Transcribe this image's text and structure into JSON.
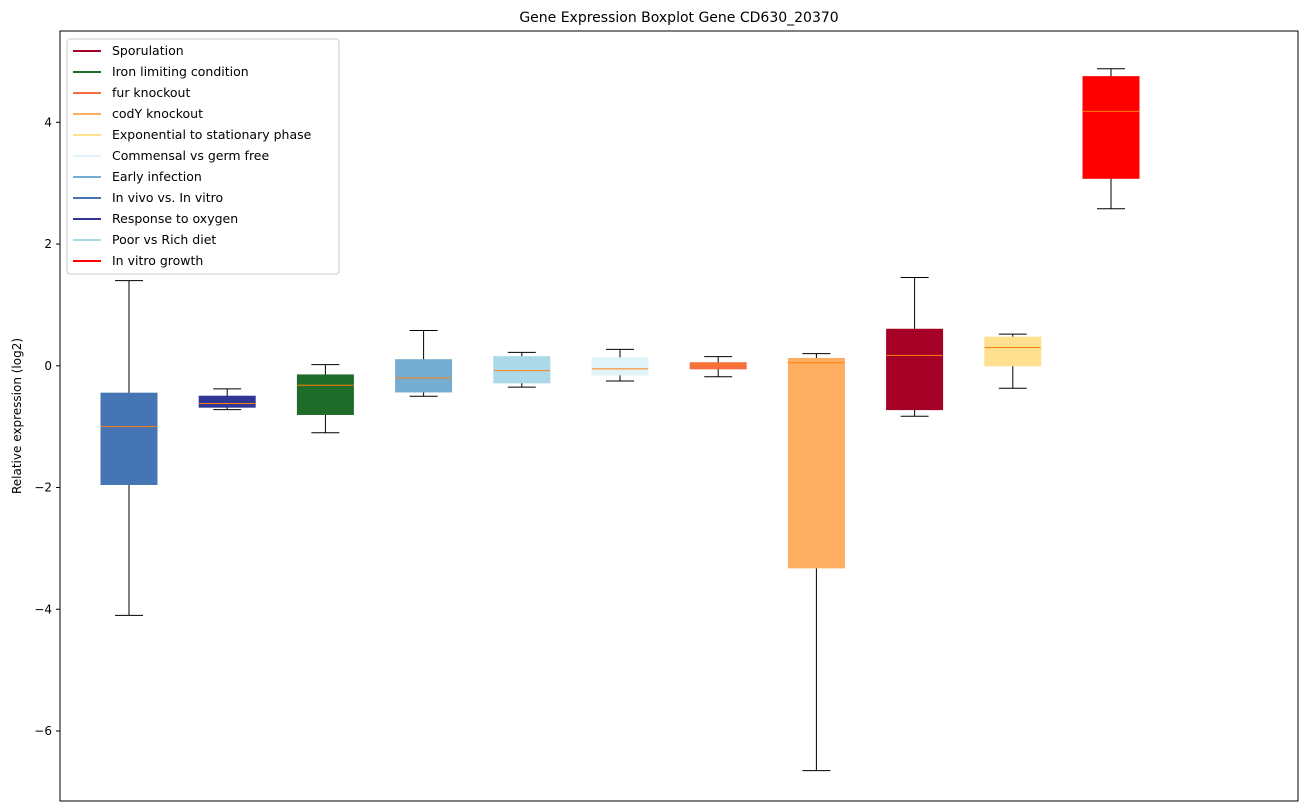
{
  "chart_data": {
    "type": "box",
    "title": "Gene Expression Boxplot Gene CD630_20370",
    "xlabel": "",
    "ylabel": "Relative expression (log2)",
    "ylim": [
      -7.15,
      5.5
    ],
    "yticks": [
      -6,
      -4,
      -2,
      0,
      2,
      4
    ],
    "ytick_labels": [
      "−6",
      "−4",
      "−2",
      "0",
      "2",
      "4"
    ],
    "x_ticks_shown": false,
    "grid": false,
    "legend_position": "upper-left",
    "legend": [
      {
        "label": "Sporulation",
        "color": "#a50026"
      },
      {
        "label": "Iron limiting condition",
        "color": "#1f6b2a"
      },
      {
        "label": "fur knockout",
        "color": "#f46d43"
      },
      {
        "label": "codY knockout",
        "color": "#fdae61"
      },
      {
        "label": "Exponential to stationary phase",
        "color": "#fee090"
      },
      {
        "label": "Commensal vs germ free",
        "color": "#e0f3f8"
      },
      {
        "label": "Early infection",
        "color": "#74add1"
      },
      {
        "label": "In vivo vs. In vitro",
        "color": "#4575b4"
      },
      {
        "label": "Response to oxygen",
        "color": "#313695"
      },
      {
        "label": "Poor vs Rich diet",
        "color": "#abd9e9"
      },
      {
        "label": "In vitro growth",
        "color": "#ff0000"
      }
    ],
    "boxes": [
      {
        "series": "In vivo vs. In vitro",
        "color": "#4575b4",
        "whislo": -4.1,
        "q1": -1.95,
        "med": -1.0,
        "q3": -0.45,
        "whishi": 1.4
      },
      {
        "series": "Response to oxygen",
        "color": "#313695",
        "whislo": -0.72,
        "q1": -0.68,
        "med": -0.62,
        "q3": -0.5,
        "whishi": -0.38
      },
      {
        "series": "Iron limiting condition",
        "color": "#1f6b2a",
        "whislo": -1.1,
        "q1": -0.8,
        "med": -0.32,
        "q3": -0.15,
        "whishi": 0.02
      },
      {
        "series": "Early infection",
        "color": "#74add1",
        "whislo": -0.5,
        "q1": -0.43,
        "med": -0.2,
        "q3": 0.1,
        "whishi": 0.58
      },
      {
        "series": "Poor vs Rich diet",
        "color": "#abd9e9",
        "whislo": -0.35,
        "q1": -0.28,
        "med": -0.08,
        "q3": 0.15,
        "whishi": 0.22
      },
      {
        "series": "Commensal vs germ free",
        "color": "#e0f3f8",
        "whislo": -0.25,
        "q1": -0.15,
        "med": -0.05,
        "q3": 0.13,
        "whishi": 0.27
      },
      {
        "series": "fur knockout",
        "color": "#f46d43",
        "whislo": -0.18,
        "q1": -0.05,
        "med": 0.02,
        "q3": 0.05,
        "whishi": 0.15
      },
      {
        "series": "codY knockout",
        "color": "#fdae61",
        "whislo": -6.65,
        "q1": -3.32,
        "med": 0.05,
        "q3": 0.12,
        "whishi": 0.2
      },
      {
        "series": "Sporulation",
        "color": "#a50026",
        "whislo": -0.83,
        "q1": -0.72,
        "med": 0.17,
        "q3": 0.6,
        "whishi": 1.45
      },
      {
        "series": "Exponential to stationary phase",
        "color": "#fee090",
        "whislo": -0.37,
        "q1": 0.0,
        "med": 0.3,
        "q3": 0.47,
        "whishi": 0.52
      },
      {
        "series": "In vitro growth",
        "color": "#ff0000",
        "whislo": 2.58,
        "q1": 3.08,
        "med": 4.18,
        "q3": 4.75,
        "whishi": 4.88
      }
    ],
    "median_color": "#ff7f0e"
  }
}
